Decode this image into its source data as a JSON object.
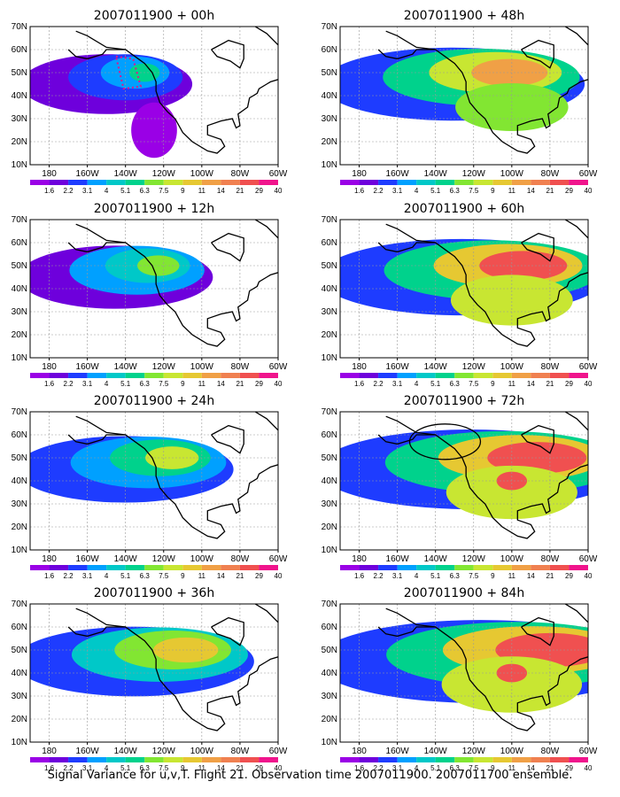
{
  "caption": "Signal Variance for u,v,T. Flight 21. Observation time 2007011900. 2007011700 ensemble.",
  "map": {
    "x_tick_labels": [
      "180",
      "160W",
      "140W",
      "120W",
      "100W",
      "80W",
      "60W"
    ],
    "y_tick_labels": [
      "10N",
      "20N",
      "30N",
      "40N",
      "50N",
      "60N",
      "70N"
    ],
    "lon_range": [
      -190,
      -60
    ],
    "lat_range": [
      10,
      70
    ]
  },
  "colorbar": {
    "labels": [
      "1.6",
      "2.2",
      "3.1",
      "4",
      "5.1",
      "6.3",
      "7.5",
      "9",
      "11",
      "14",
      "21",
      "29",
      "40"
    ],
    "colors": [
      "#9a00e6",
      "#6e00dc",
      "#1e3cff",
      "#00a0ff",
      "#00c8c8",
      "#00d28c",
      "#82e632",
      "#c8e632",
      "#e6c832",
      "#f0a046",
      "#f08050",
      "#f05050",
      "#f0148c"
    ]
  },
  "chart_data": [
    {
      "type": "heatmap",
      "title": "2007011900 + 00h",
      "lead_hours": 0,
      "has_targeting_box": true,
      "has_verification_ellipse": false
    },
    {
      "type": "heatmap",
      "title": "2007011900 + 12h",
      "lead_hours": 12,
      "has_targeting_box": false,
      "has_verification_ellipse": false
    },
    {
      "type": "heatmap",
      "title": "2007011900 + 24h",
      "lead_hours": 24,
      "has_targeting_box": false,
      "has_verification_ellipse": false
    },
    {
      "type": "heatmap",
      "title": "2007011900 + 36h",
      "lead_hours": 36,
      "has_targeting_box": false,
      "has_verification_ellipse": false
    },
    {
      "type": "heatmap",
      "title": "2007011900 + 48h",
      "lead_hours": 48,
      "has_targeting_box": false,
      "has_verification_ellipse": false
    },
    {
      "type": "heatmap",
      "title": "2007011900 + 60h",
      "lead_hours": 60,
      "has_targeting_box": false,
      "has_verification_ellipse": false
    },
    {
      "type": "heatmap",
      "title": "2007011900 + 72h",
      "lead_hours": 72,
      "has_targeting_box": false,
      "has_verification_ellipse": true
    },
    {
      "type": "heatmap",
      "title": "2007011900 + 84h",
      "lead_hours": 84,
      "has_targeting_box": false,
      "has_verification_ellipse": false
    }
  ]
}
